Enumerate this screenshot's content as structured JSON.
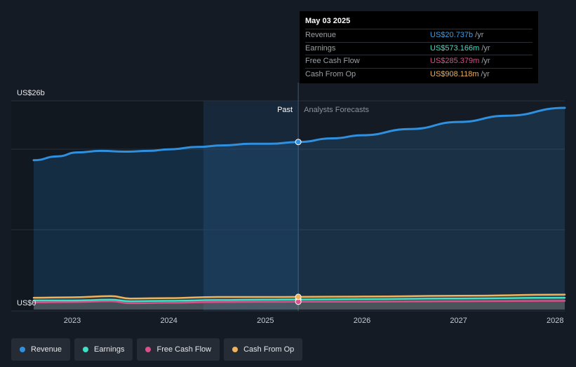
{
  "tooltip": {
    "date": "May 03 2025",
    "rows": [
      {
        "label": "Revenue",
        "value": "US$20.737b",
        "unit": "/yr",
        "color": "#3b9ee6"
      },
      {
        "label": "Earnings",
        "value": "US$573.166m",
        "unit": "/yr",
        "color": "#3fe0c5"
      },
      {
        "label": "Free Cash Flow",
        "value": "US$285.379m",
        "unit": "/yr",
        "color": "#d94f8a"
      },
      {
        "label": "Cash From Op",
        "value": "US$908.118m",
        "unit": "/yr",
        "color": "#f0b25a"
      }
    ]
  },
  "legend": [
    {
      "label": "Revenue",
      "color": "#2f90e0"
    },
    {
      "label": "Earnings",
      "color": "#3fe0c5"
    },
    {
      "label": "Free Cash Flow",
      "color": "#d94f8a"
    },
    {
      "label": "Cash From Op",
      "color": "#f0b25a"
    }
  ],
  "chart_data": {
    "type": "line",
    "ylabel_top": "US$26b",
    "ylabel_bottom": "US$0",
    "ylim": [
      0,
      26
    ],
    "xlim": [
      2022.6,
      2028.1
    ],
    "x_ticks": [
      "2023",
      "2024",
      "2025",
      "2026",
      "2027",
      "2028"
    ],
    "x_tick_values": [
      2023,
      2024,
      2025,
      2026,
      2027,
      2028
    ],
    "past_label": "Past",
    "forecast_label": "Analysts Forecasts",
    "divider_x": 2025.34,
    "grid": true,
    "series": [
      {
        "name": "Revenue",
        "color": "#2f90e0",
        "x": [
          2022.6,
          2022.85,
          2023.05,
          2023.3,
          2023.55,
          2023.8,
          2024.0,
          2024.3,
          2024.55,
          2024.85,
          2025.05,
          2025.34,
          2025.7,
          2026.0,
          2026.5,
          2027.0,
          2027.5,
          2028.1
        ],
        "y": [
          18.4,
          18.9,
          19.4,
          19.6,
          19.5,
          19.6,
          19.8,
          20.1,
          20.3,
          20.5,
          20.5,
          20.737,
          21.2,
          21.6,
          22.4,
          23.3,
          24.1,
          25.1
        ]
      },
      {
        "name": "Earnings",
        "color": "#3fe0c5",
        "x": [
          2022.6,
          2023.0,
          2023.4,
          2023.6,
          2024.0,
          2024.5,
          2025.0,
          2025.34,
          2026.0,
          2027.0,
          2028.1
        ],
        "y": [
          0.45,
          0.45,
          0.55,
          0.35,
          0.4,
          0.5,
          0.55,
          0.573,
          0.62,
          0.7,
          0.8
        ]
      },
      {
        "name": "Free Cash Flow",
        "color": "#d94f8a",
        "x": [
          2022.6,
          2023.0,
          2023.4,
          2023.6,
          2024.0,
          2024.5,
          2025.0,
          2025.34,
          2026.0,
          2027.0,
          2028.1
        ],
        "y": [
          0.2,
          0.25,
          0.35,
          0.1,
          0.15,
          0.25,
          0.28,
          0.285,
          0.3,
          0.35,
          0.4
        ]
      },
      {
        "name": "Cash From Op",
        "color": "#f0b25a",
        "x": [
          2022.6,
          2023.0,
          2023.4,
          2023.6,
          2024.0,
          2024.5,
          2025.0,
          2025.34,
          2026.0,
          2027.0,
          2028.1
        ],
        "y": [
          0.8,
          0.85,
          1.0,
          0.7,
          0.75,
          0.9,
          0.9,
          0.908,
          0.95,
          1.05,
          1.2
        ]
      }
    ]
  }
}
